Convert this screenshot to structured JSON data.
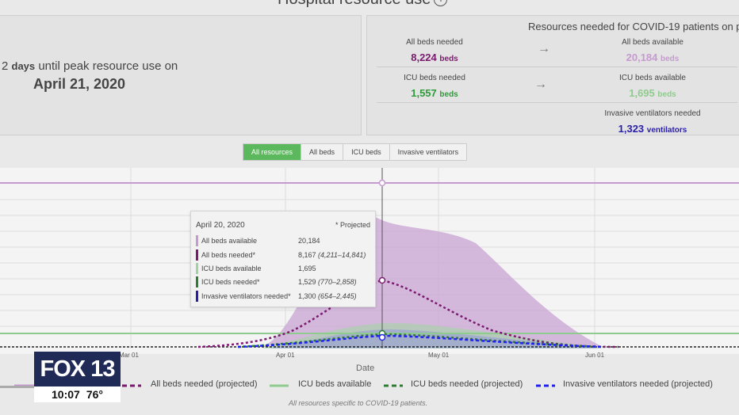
{
  "title": "Hospital resource use",
  "summary": {
    "line1_prefix": "2",
    "line1_days": "days",
    "line1_suffix": "until peak resource use on",
    "peak_date": "April 21, 2020"
  },
  "resources": {
    "header": "Resources needed for COVID-19 patients on pea",
    "all_beds_needed_label": "All beds needed",
    "all_beds_needed_value": "8,224",
    "all_beds_available_label": "All beds available",
    "all_beds_available_value": "20,184",
    "icu_beds_needed_label": "ICU beds needed",
    "icu_beds_needed_value": "1,557",
    "icu_beds_available_label": "ICU beds available",
    "icu_beds_available_value": "1,695",
    "ventilators_label": "Invasive ventilators needed",
    "ventilators_value": "1,323",
    "beds_unit": "beds",
    "vent_unit": "ventilators",
    "arrow": "→"
  },
  "tabs": [
    "All resources",
    "All beds",
    "ICU beds",
    "Invasive ventilators"
  ],
  "active_tab": "All resources",
  "tooltip": {
    "date": "April 20, 2020",
    "projected": "* Projected",
    "rows": [
      {
        "label": "All beds available",
        "value": "20,184",
        "range": "",
        "color": "#c59bcf"
      },
      {
        "label": "All beds needed*",
        "value": "8,167",
        "range": "(4,211–14,841)",
        "color": "#7b1a6e"
      },
      {
        "label": "ICU beds available",
        "value": "1,695",
        "range": "",
        "color": "#9fd39f"
      },
      {
        "label": "ICU beds needed*",
        "value": "1,529",
        "range": "(770–2,858)",
        "color": "#2e7d32"
      },
      {
        "label": "Invasive ventilators needed*",
        "value": "1,300",
        "range": "(654–2,445)",
        "color": "#2a1fa8"
      }
    ]
  },
  "xaxis": {
    "title": "Date",
    "ticks": [
      "Mar 01",
      "Apr 01",
      "May 01",
      "Jun 01"
    ]
  },
  "legend": [
    {
      "label": "All beds needed (projected)",
      "color": "#7b1a6e"
    },
    {
      "label": "ICU beds available",
      "color": "#8fcb8f"
    },
    {
      "label": "ICU beds needed (projected)",
      "color": "#2e7d32"
    },
    {
      "label": "Invasive ventilators needed (projected)",
      "color": "#2222ee"
    }
  ],
  "footnote": "All resources specific to COVID-19 patients.",
  "overlay": {
    "brand": "FOX 13",
    "time": "10:07",
    "temp": "76°"
  },
  "colors": {
    "all_beds_available": "#c59bcf",
    "all_beds_needed": "#7b1a6e",
    "icu_available": "#8fcb8f",
    "icu_needed": "#2e7d32",
    "ventilators": "#2222ee",
    "active_tab": "#5cb85c"
  }
}
